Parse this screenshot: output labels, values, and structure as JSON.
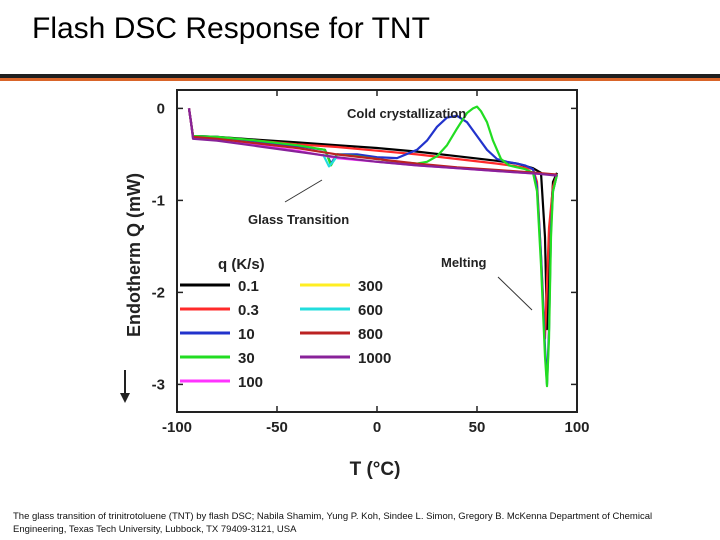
{
  "slide": {
    "title": "Flash DSC Response for TNT",
    "caption": "The glass transition of trinitrotoluene (TNT) by flash DSC; Nabila Shamim, Yung P. Koh, Sindee L. Simon, Gregory B. McKenna Department of Chemical Engineering, Texas Tech University, Lubbock, TX 79409-3121, USA",
    "accent_color": "#d9652a"
  },
  "chart_data": {
    "type": "line",
    "title": "",
    "xlabel": "T (°C)",
    "ylabel": "Endotherm   Q (mW)",
    "xlim": [
      -100,
      100
    ],
    "ylim": [
      -3.3,
      0.2
    ],
    "x_ticks": [
      "-100",
      "-50",
      "0",
      "50",
      "100"
    ],
    "y_ticks": [
      "0",
      "-1",
      "-2",
      "-3"
    ],
    "legend_title": "q (K/s)",
    "legend_placement": "lower-left",
    "annotations": {
      "cold_crystallization": "Cold crystallization",
      "glass_transition": "Glass Transition",
      "melting": "Melting"
    },
    "series": [
      {
        "name": "0.1",
        "color": "#000000",
        "x": [
          -94,
          -93,
          -92,
          -80,
          -60,
          -40,
          -20,
          0,
          20,
          40,
          60,
          70,
          78,
          82,
          84,
          85,
          86,
          88,
          90
        ],
        "y": [
          0,
          -0.15,
          -0.3,
          -0.31,
          -0.34,
          -0.37,
          -0.4,
          -0.43,
          -0.47,
          -0.52,
          -0.57,
          -0.6,
          -0.65,
          -0.7,
          -1.4,
          -2.4,
          -1.5,
          -0.8,
          -0.7
        ]
      },
      {
        "name": "0.3",
        "color": "#ff2a2a",
        "x": [
          -94,
          -93,
          -92,
          -80,
          -60,
          -40,
          -20,
          0,
          20,
          40,
          60,
          70,
          78,
          80,
          82,
          84,
          86,
          88,
          90
        ],
        "y": [
          0,
          -0.15,
          -0.3,
          -0.32,
          -0.35,
          -0.39,
          -0.42,
          -0.46,
          -0.5,
          -0.55,
          -0.6,
          -0.63,
          -0.66,
          -0.8,
          -1.6,
          -2.5,
          -1.3,
          -0.85,
          -0.72
        ]
      },
      {
        "name": "10",
        "color": "#2233cc",
        "x": [
          -94,
          -93,
          -92,
          -80,
          -60,
          -40,
          -26,
          -23,
          -20,
          -10,
          0,
          10,
          20,
          25,
          30,
          35,
          40,
          45,
          50,
          55,
          60,
          65,
          70,
          74,
          78,
          80,
          82,
          84,
          85,
          86,
          87,
          88,
          90
        ],
        "y": [
          0,
          -0.15,
          -0.3,
          -0.31,
          -0.36,
          -0.41,
          -0.45,
          -0.6,
          -0.5,
          -0.5,
          -0.53,
          -0.54,
          -0.45,
          -0.35,
          -0.2,
          -0.1,
          -0.08,
          -0.15,
          -0.3,
          -0.45,
          -0.55,
          -0.58,
          -0.6,
          -0.62,
          -0.66,
          -0.85,
          -1.6,
          -2.6,
          -3.0,
          -2.4,
          -1.3,
          -0.9,
          -0.72
        ]
      },
      {
        "name": "30",
        "color": "#22dd22",
        "x": [
          -94,
          -93,
          -92,
          -80,
          -60,
          -40,
          -26,
          -23,
          -20,
          -10,
          0,
          10,
          20,
          25,
          30,
          35,
          40,
          45,
          48,
          50,
          52,
          55,
          58,
          62,
          66,
          70,
          74,
          78,
          80,
          82,
          84,
          85,
          86,
          87,
          88,
          90
        ],
        "y": [
          0,
          -0.15,
          -0.3,
          -0.31,
          -0.35,
          -0.4,
          -0.45,
          -0.62,
          -0.5,
          -0.52,
          -0.55,
          -0.58,
          -0.6,
          -0.58,
          -0.52,
          -0.4,
          -0.22,
          -0.05,
          0.0,
          0.02,
          -0.03,
          -0.15,
          -0.35,
          -0.55,
          -0.62,
          -0.64,
          -0.66,
          -0.7,
          -0.9,
          -1.7,
          -2.7,
          -3.02,
          -2.5,
          -1.4,
          -0.9,
          -0.72
        ]
      },
      {
        "name": "100",
        "color": "#ff33ff",
        "x": [
          -94,
          -93,
          -92,
          -80,
          -60,
          -40,
          -25,
          -20,
          0,
          20,
          40,
          60,
          80,
          90
        ],
        "y": [
          0,
          -0.15,
          -0.32,
          -0.34,
          -0.4,
          -0.46,
          -0.52,
          -0.54,
          -0.58,
          -0.62,
          -0.65,
          -0.68,
          -0.71,
          -0.72
        ]
      },
      {
        "name": "300",
        "color": "#ffee22",
        "x": [],
        "y": []
      },
      {
        "name": "600",
        "color": "#22dddd",
        "x": [
          -27,
          -24,
          -22,
          -20
        ],
        "y": [
          -0.5,
          -0.63,
          -0.58,
          -0.52
        ]
      },
      {
        "name": "800",
        "color": "#bb2222",
        "x": [
          -94,
          -93,
          -92,
          -80,
          -60,
          -40,
          -20,
          0,
          20,
          40,
          60,
          80,
          90
        ],
        "y": [
          0,
          -0.15,
          -0.31,
          -0.33,
          -0.38,
          -0.43,
          -0.5,
          -0.55,
          -0.6,
          -0.64,
          -0.67,
          -0.7,
          -0.72
        ]
      },
      {
        "name": "1000",
        "color": "#882299",
        "x": [
          -94,
          -93,
          -92,
          -80,
          -60,
          -40,
          -20,
          0,
          20,
          40,
          60,
          80,
          90
        ],
        "y": [
          0,
          -0.15,
          -0.33,
          -0.35,
          -0.41,
          -0.47,
          -0.53,
          -0.58,
          -0.62,
          -0.65,
          -0.68,
          -0.71,
          -0.73
        ]
      }
    ]
  }
}
